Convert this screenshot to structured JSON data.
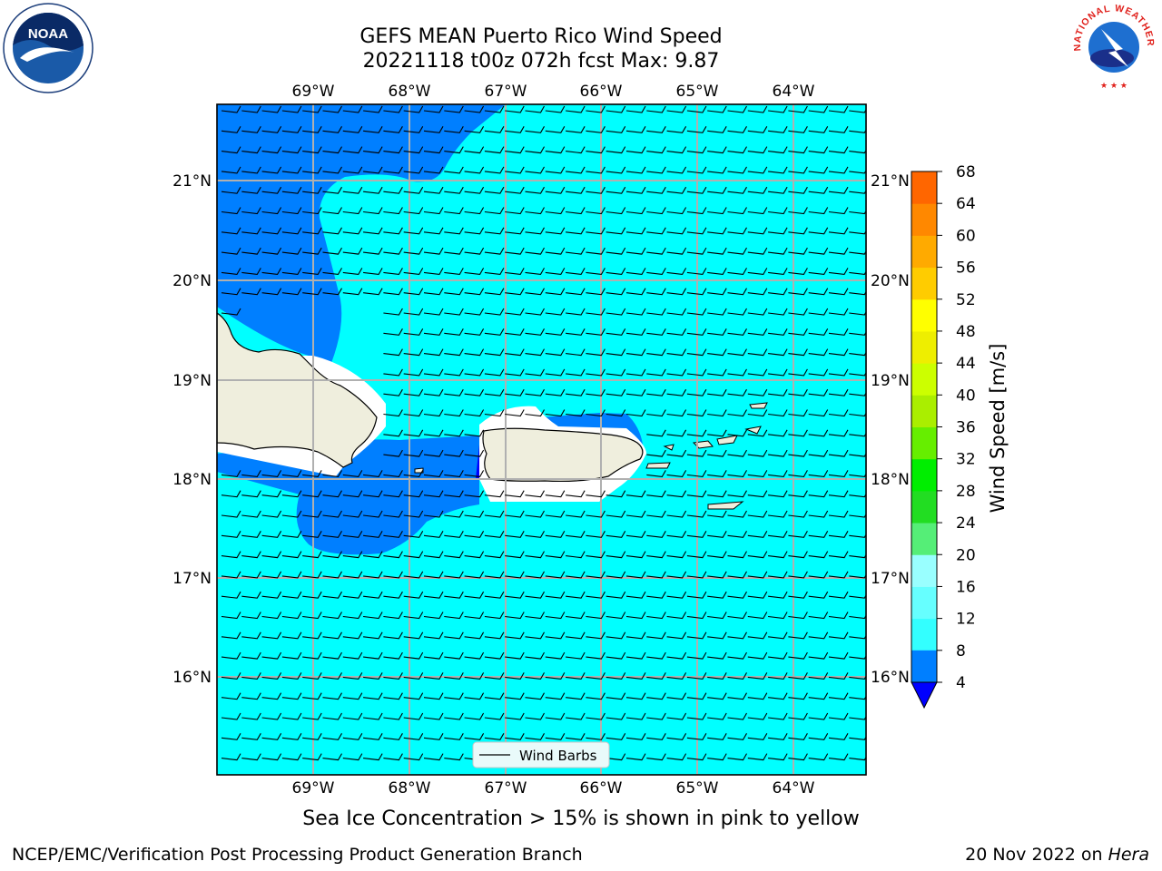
{
  "title": {
    "line1": "GEFS MEAN Puerto Rico Wind Speed",
    "line2": "20221118 t00z 072h fcst   Max: 9.87"
  },
  "map": {
    "lon_labels": [
      "69°W",
      "68°W",
      "67°W",
      "66°W",
      "65°W",
      "64°W"
    ],
    "lat_labels": [
      "21°N",
      "20°N",
      "19°N",
      "18°N",
      "17°N",
      "16°N"
    ],
    "legend_label": "Wind Barbs"
  },
  "colorbar": {
    "label": "Wind Speed [m/s]",
    "ticks": [
      "4",
      "8",
      "12",
      "16",
      "20",
      "24",
      "28",
      "32",
      "36",
      "40",
      "44",
      "48",
      "52",
      "56",
      "60",
      "64",
      "68"
    ],
    "colors": [
      "#007fff",
      "#00ffff",
      "#33ffff",
      "#66ffff",
      "#99ffff",
      "#55ee77",
      "#22dd22",
      "#00ee00",
      "#66ee00",
      "#aaee00",
      "#ccff00",
      "#eeee00",
      "#ffff00",
      "#ffcc00",
      "#ffaa00",
      "#ff8800",
      "#ff6600",
      "#ff3300",
      "#ff0000"
    ],
    "under_color": "#0000ff"
  },
  "logos": {
    "noaa_text": "NOAA",
    "nws_text": "NATIONAL WEATHER SERVICE"
  },
  "sea_ice_note": "Sea Ice Concentration > 15% is shown in pink to yellow",
  "footer": {
    "left": "NCEP/EMC/Verification Post Processing Product Generation Branch",
    "date": "20 Nov 2022 on ",
    "machine": "Hera"
  }
}
